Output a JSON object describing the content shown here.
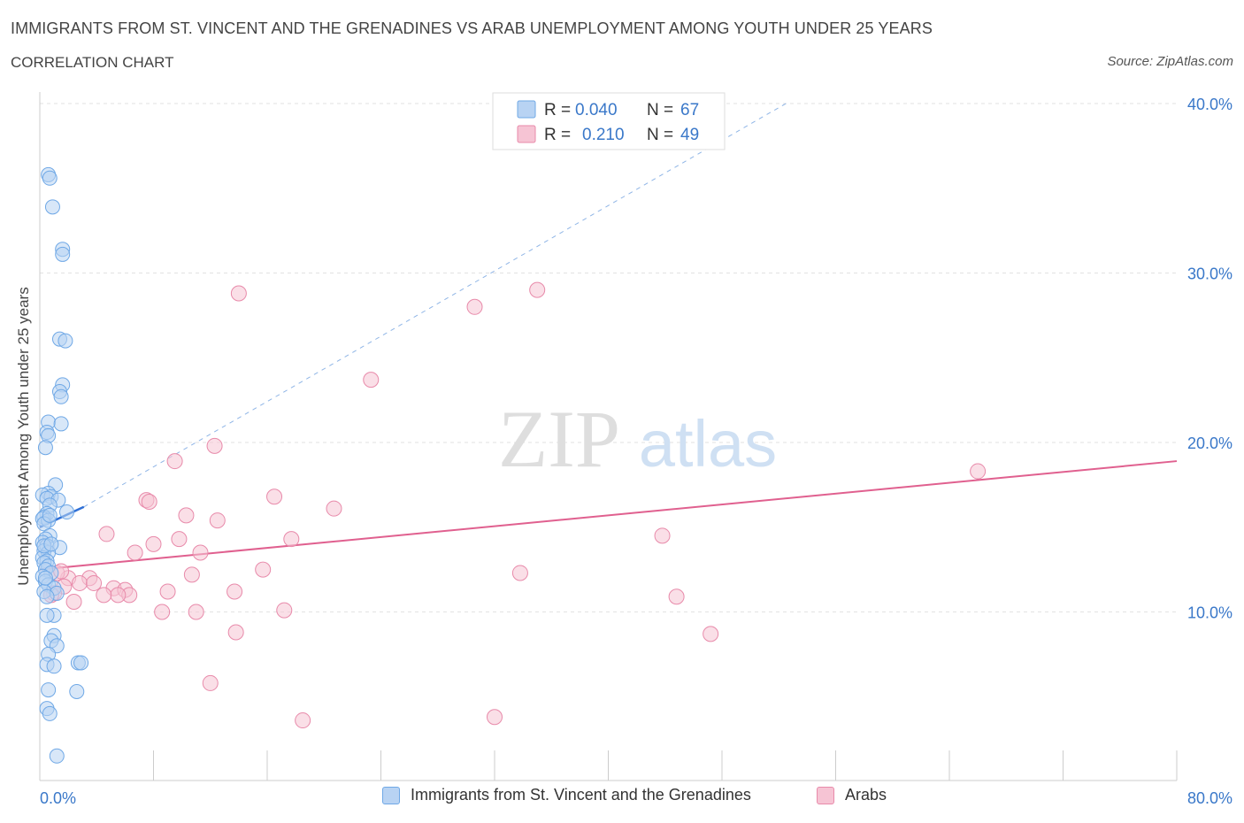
{
  "title": "IMMIGRANTS FROM ST. VINCENT AND THE GRENADINES VS ARAB UNEMPLOYMENT AMONG YOUTH UNDER 25 YEARS",
  "subtitle": "CORRELATION CHART",
  "source": "Source: ZipAtlas.com",
  "watermark": {
    "zip": "ZIP",
    "atlas": "atlas"
  },
  "colors": {
    "blue": "#6fa8e6",
    "blue_fill": "#b8d3f3",
    "blue_line": "#2f6fd6",
    "pink": "#e88aaa",
    "pink_fill": "#f6c4d4",
    "pink_line": "#e0608f",
    "axis_text": "#3a78c9"
  },
  "legend": {
    "r_label": "R =",
    "n_label": "N =",
    "series": [
      {
        "r": "0.040",
        "n": "67"
      },
      {
        "r": "0.210",
        "n": "49"
      }
    ]
  },
  "chart_data": {
    "type": "scatter",
    "title": "IMMIGRANTS FROM ST. VINCENT AND THE GRENADINES VS ARAB UNEMPLOYMENT AMONG YOUTH UNDER 25 YEARS",
    "xlabel": "",
    "ylabel": "Unemployment Among Youth under 25 years",
    "xlim": [
      0,
      80
    ],
    "ylim": [
      0,
      40
    ],
    "x_tick_labels": [
      "0.0%",
      "80.0%"
    ],
    "y_tick_labels": [
      "10.0%",
      "20.0%",
      "30.0%",
      "40.0%"
    ],
    "y_ticks": [
      10,
      20,
      30,
      40
    ],
    "grid": true,
    "series": [
      {
        "name": "Immigrants from St. Vincent and the Grenadines",
        "color": "blue",
        "trend": {
          "x": [
            0,
            3.1
          ],
          "y": [
            15.0,
            16.2
          ],
          "style": "solid"
        },
        "trend_extension": {
          "x": [
            3.1,
            52.5
          ],
          "y": [
            16.2,
            40.0
          ],
          "style": "dashed"
        },
        "points": [
          [
            0.6,
            35.8
          ],
          [
            0.7,
            35.6
          ],
          [
            0.9,
            33.9
          ],
          [
            1.6,
            31.4
          ],
          [
            1.6,
            31.1
          ],
          [
            1.4,
            26.1
          ],
          [
            1.8,
            26.0
          ],
          [
            1.6,
            23.4
          ],
          [
            1.4,
            23.0
          ],
          [
            1.5,
            22.7
          ],
          [
            0.6,
            21.2
          ],
          [
            1.5,
            21.1
          ],
          [
            0.5,
            20.6
          ],
          [
            0.6,
            20.4
          ],
          [
            0.4,
            19.7
          ],
          [
            1.1,
            17.5
          ],
          [
            0.6,
            17.0
          ],
          [
            0.2,
            16.9
          ],
          [
            0.8,
            16.8
          ],
          [
            0.5,
            16.7
          ],
          [
            1.3,
            16.6
          ],
          [
            0.7,
            16.3
          ],
          [
            1.9,
            15.9
          ],
          [
            0.5,
            15.8
          ],
          [
            0.3,
            15.6
          ],
          [
            0.2,
            15.5
          ],
          [
            0.6,
            15.4
          ],
          [
            0.3,
            15.2
          ],
          [
            0.7,
            14.5
          ],
          [
            0.4,
            14.3
          ],
          [
            0.2,
            14.1
          ],
          [
            0.5,
            13.9
          ],
          [
            1.4,
            13.8
          ],
          [
            0.3,
            13.6
          ],
          [
            0.6,
            13.5
          ],
          [
            0.2,
            13.2
          ],
          [
            0.5,
            13.0
          ],
          [
            0.3,
            12.9
          ],
          [
            0.6,
            12.7
          ],
          [
            0.4,
            12.5
          ],
          [
            0.8,
            12.3
          ],
          [
            0.2,
            12.1
          ],
          [
            0.4,
            11.8
          ],
          [
            0.6,
            11.6
          ],
          [
            1.0,
            11.4
          ],
          [
            0.3,
            11.2
          ],
          [
            1.2,
            11.1
          ],
          [
            0.5,
            10.9
          ],
          [
            1.0,
            9.8
          ],
          [
            0.5,
            9.8
          ],
          [
            1.0,
            8.6
          ],
          [
            0.8,
            8.3
          ],
          [
            1.2,
            8.0
          ],
          [
            0.6,
            7.5
          ],
          [
            0.5,
            6.9
          ],
          [
            1.0,
            6.8
          ],
          [
            2.7,
            7.0
          ],
          [
            2.9,
            7.0
          ],
          [
            0.6,
            5.4
          ],
          [
            2.6,
            5.3
          ],
          [
            0.5,
            4.3
          ],
          [
            0.7,
            4.0
          ],
          [
            1.2,
            1.5
          ],
          [
            0.3,
            13.9
          ],
          [
            0.8,
            14.0
          ],
          [
            0.4,
            12.0
          ],
          [
            0.7,
            15.7
          ]
        ]
      },
      {
        "name": "Arabs",
        "color": "pink",
        "trend": {
          "x": [
            0,
            80
          ],
          "y": [
            12.5,
            18.9
          ],
          "style": "solid"
        },
        "points": [
          [
            14.0,
            28.8
          ],
          [
            30.6,
            28.0
          ],
          [
            35.0,
            29.0
          ],
          [
            23.3,
            23.7
          ],
          [
            12.3,
            19.8
          ],
          [
            9.5,
            18.9
          ],
          [
            66.0,
            18.3
          ],
          [
            16.5,
            16.8
          ],
          [
            7.5,
            16.6
          ],
          [
            7.7,
            16.5
          ],
          [
            20.7,
            16.1
          ],
          [
            10.3,
            15.7
          ],
          [
            12.5,
            15.4
          ],
          [
            4.7,
            14.6
          ],
          [
            9.8,
            14.3
          ],
          [
            17.7,
            14.3
          ],
          [
            43.8,
            14.5
          ],
          [
            8.0,
            14.0
          ],
          [
            6.7,
            13.5
          ],
          [
            11.3,
            13.5
          ],
          [
            15.7,
            12.5
          ],
          [
            10.7,
            12.2
          ],
          [
            33.8,
            12.3
          ],
          [
            2.0,
            12.0
          ],
          [
            3.5,
            12.0
          ],
          [
            1.2,
            12.3
          ],
          [
            2.8,
            11.7
          ],
          [
            3.8,
            11.7
          ],
          [
            1.7,
            11.5
          ],
          [
            5.2,
            11.4
          ],
          [
            6.0,
            11.3
          ],
          [
            6.3,
            11.0
          ],
          [
            5.5,
            11.0
          ],
          [
            4.5,
            11.0
          ],
          [
            9.0,
            11.2
          ],
          [
            13.7,
            11.2
          ],
          [
            1.0,
            11.1
          ],
          [
            2.4,
            10.6
          ],
          [
            44.8,
            10.9
          ],
          [
            8.6,
            10.0
          ],
          [
            11.0,
            10.0
          ],
          [
            17.2,
            10.1
          ],
          [
            13.8,
            8.8
          ],
          [
            47.2,
            8.7
          ],
          [
            12.0,
            5.8
          ],
          [
            18.5,
            3.6
          ],
          [
            32.0,
            3.8
          ],
          [
            1.5,
            12.4
          ],
          [
            0.8,
            11.0
          ]
        ]
      }
    ]
  }
}
